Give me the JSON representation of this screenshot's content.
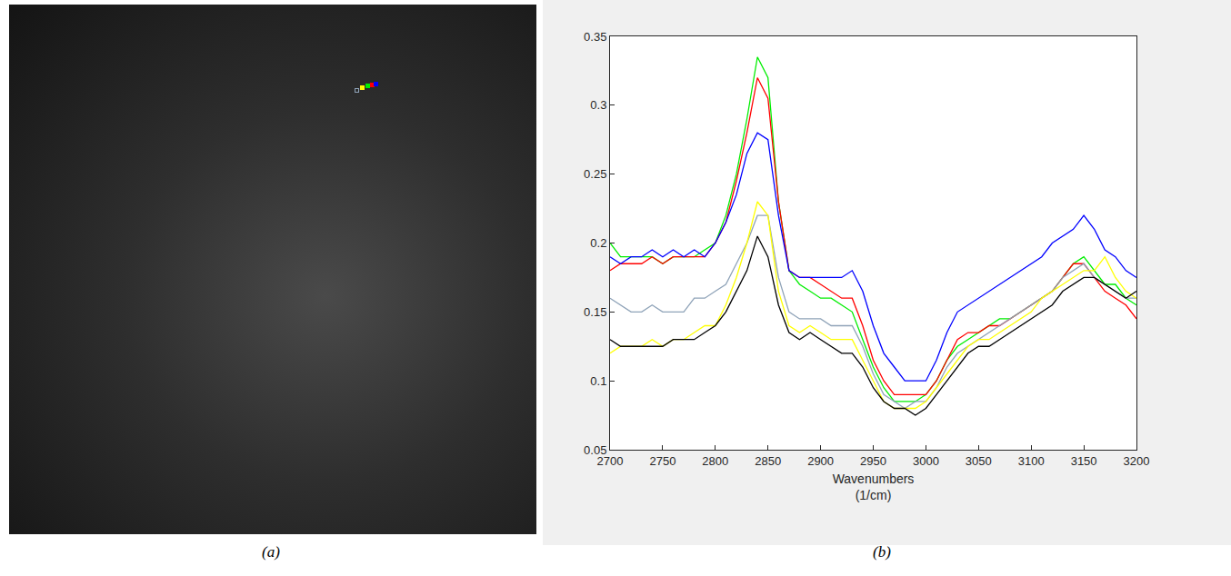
{
  "chart_data": {
    "type": "line",
    "x": [
      2700,
      2710,
      2720,
      2730,
      2740,
      2750,
      2760,
      2770,
      2780,
      2790,
      2800,
      2810,
      2820,
      2830,
      2840,
      2850,
      2860,
      2870,
      2880,
      2890,
      2900,
      2910,
      2920,
      2930,
      2940,
      2950,
      2960,
      2970,
      2980,
      2990,
      3000,
      3010,
      3020,
      3030,
      3040,
      3050,
      3060,
      3070,
      3080,
      3090,
      3100,
      3110,
      3120,
      3130,
      3140,
      3150,
      3160,
      3170,
      3180,
      3190,
      3200
    ],
    "series": [
      {
        "color": "#00ee00",
        "values": [
          0.2,
          0.19,
          0.19,
          0.19,
          0.19,
          0.185,
          0.19,
          0.19,
          0.19,
          0.195,
          0.2,
          0.22,
          0.25,
          0.29,
          0.335,
          0.32,
          0.23,
          0.18,
          0.17,
          0.165,
          0.16,
          0.16,
          0.155,
          0.15,
          0.13,
          0.11,
          0.095,
          0.085,
          0.085,
          0.085,
          0.09,
          0.1,
          0.115,
          0.125,
          0.13,
          0.135,
          0.14,
          0.145,
          0.145,
          0.15,
          0.155,
          0.16,
          0.165,
          0.175,
          0.185,
          0.19,
          0.18,
          0.17,
          0.17,
          0.16,
          0.155
        ]
      },
      {
        "color": "#ff0000",
        "values": [
          0.18,
          0.185,
          0.185,
          0.185,
          0.19,
          0.185,
          0.19,
          0.19,
          0.19,
          0.19,
          0.2,
          0.215,
          0.245,
          0.28,
          0.32,
          0.305,
          0.23,
          0.18,
          0.175,
          0.175,
          0.17,
          0.165,
          0.16,
          0.16,
          0.14,
          0.115,
          0.1,
          0.09,
          0.09,
          0.09,
          0.09,
          0.1,
          0.115,
          0.13,
          0.135,
          0.135,
          0.14,
          0.14,
          0.145,
          0.15,
          0.155,
          0.16,
          0.165,
          0.175,
          0.185,
          0.185,
          0.175,
          0.165,
          0.16,
          0.155,
          0.145
        ]
      },
      {
        "color": "#0000ff",
        "values": [
          0.19,
          0.185,
          0.19,
          0.19,
          0.195,
          0.19,
          0.195,
          0.19,
          0.195,
          0.19,
          0.2,
          0.215,
          0.235,
          0.265,
          0.28,
          0.275,
          0.22,
          0.18,
          0.175,
          0.175,
          0.175,
          0.175,
          0.175,
          0.18,
          0.165,
          0.14,
          0.12,
          0.11,
          0.1,
          0.1,
          0.1,
          0.115,
          0.135,
          0.15,
          0.155,
          0.16,
          0.165,
          0.17,
          0.175,
          0.18,
          0.185,
          0.19,
          0.2,
          0.205,
          0.21,
          0.22,
          0.21,
          0.195,
          0.19,
          0.18,
          0.175
        ]
      },
      {
        "color": "#8fa3b8",
        "values": [
          0.16,
          0.155,
          0.15,
          0.15,
          0.155,
          0.15,
          0.15,
          0.15,
          0.16,
          0.16,
          0.165,
          0.17,
          0.185,
          0.2,
          0.22,
          0.22,
          0.175,
          0.15,
          0.145,
          0.145,
          0.145,
          0.14,
          0.14,
          0.14,
          0.125,
          0.105,
          0.09,
          0.085,
          0.08,
          0.085,
          0.085,
          0.095,
          0.11,
          0.12,
          0.125,
          0.13,
          0.135,
          0.14,
          0.145,
          0.15,
          0.155,
          0.16,
          0.165,
          0.175,
          0.18,
          0.185,
          0.175,
          0.17,
          0.165,
          0.16,
          0.16
        ]
      },
      {
        "color": "#ffff00",
        "values": [
          0.12,
          0.125,
          0.125,
          0.125,
          0.13,
          0.125,
          0.13,
          0.13,
          0.135,
          0.14,
          0.14,
          0.155,
          0.175,
          0.2,
          0.23,
          0.22,
          0.165,
          0.14,
          0.135,
          0.14,
          0.135,
          0.13,
          0.13,
          0.13,
          0.115,
          0.1,
          0.085,
          0.08,
          0.08,
          0.08,
          0.085,
          0.095,
          0.105,
          0.115,
          0.125,
          0.13,
          0.13,
          0.135,
          0.14,
          0.145,
          0.15,
          0.16,
          0.165,
          0.17,
          0.175,
          0.18,
          0.18,
          0.19,
          0.175,
          0.165,
          0.16
        ]
      },
      {
        "color": "#000000",
        "values": [
          0.13,
          0.125,
          0.125,
          0.125,
          0.125,
          0.125,
          0.13,
          0.13,
          0.13,
          0.135,
          0.14,
          0.15,
          0.165,
          0.18,
          0.205,
          0.19,
          0.155,
          0.135,
          0.13,
          0.135,
          0.13,
          0.125,
          0.12,
          0.12,
          0.11,
          0.095,
          0.085,
          0.08,
          0.08,
          0.075,
          0.08,
          0.09,
          0.1,
          0.11,
          0.12,
          0.125,
          0.125,
          0.13,
          0.135,
          0.14,
          0.145,
          0.15,
          0.155,
          0.165,
          0.17,
          0.175,
          0.175,
          0.17,
          0.165,
          0.16,
          0.165
        ]
      }
    ],
    "xlim": [
      2700,
      3200
    ],
    "ylim": [
      0.05,
      0.35
    ],
    "xticks": [
      2700,
      2750,
      2800,
      2850,
      2900,
      2950,
      3000,
      3050,
      3100,
      3150,
      3200
    ],
    "yticks": [
      0.05,
      0.1,
      0.15,
      0.2,
      0.25,
      0.3,
      0.35
    ],
    "xlabel": "Wavenumbers\n(1/cm)",
    "grid": false
  },
  "panel_labels": [
    "(a)",
    "(b)"
  ]
}
